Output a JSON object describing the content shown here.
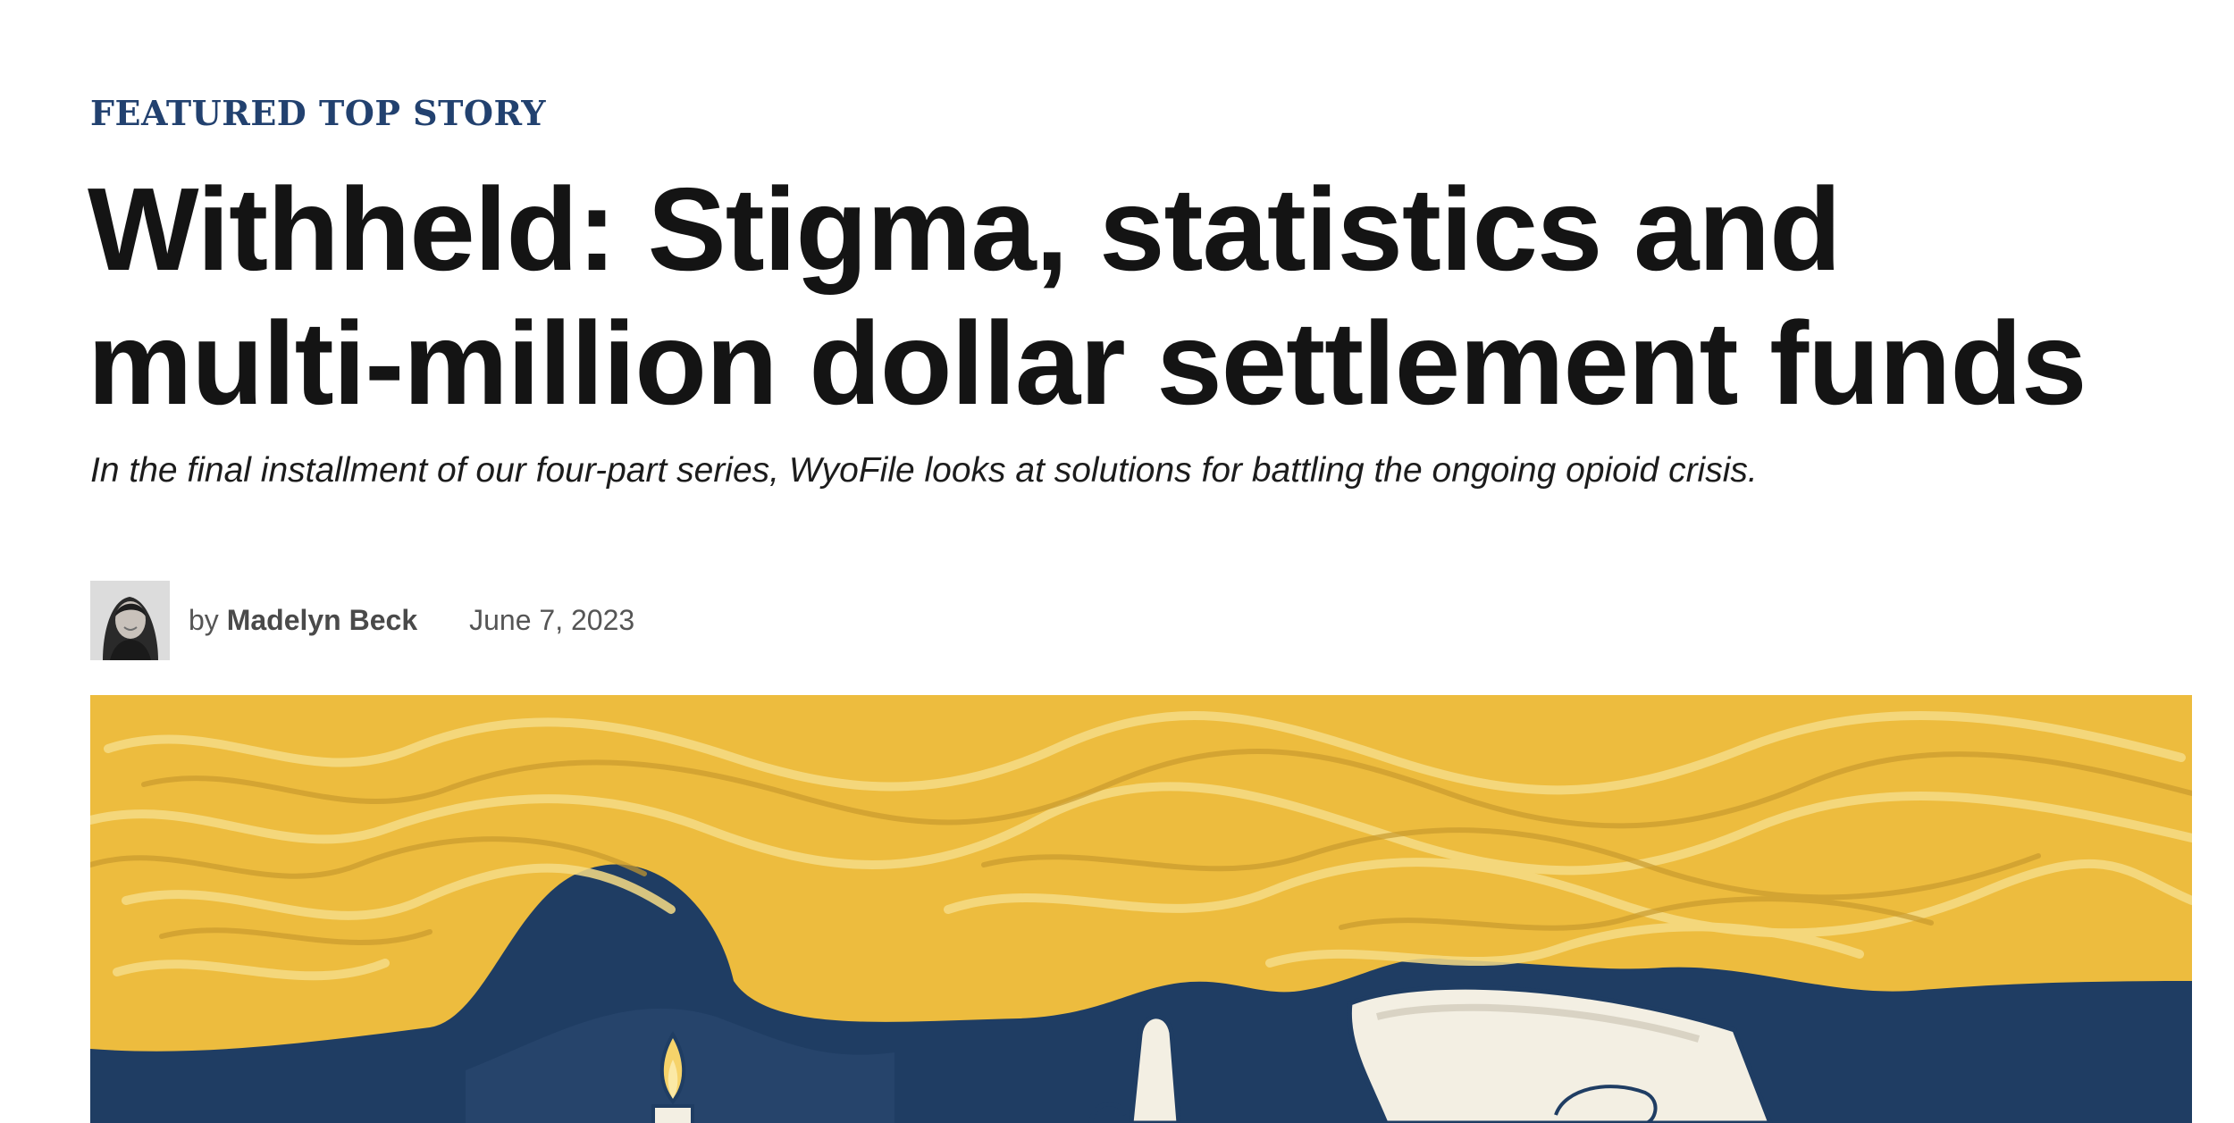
{
  "article": {
    "kicker": "FEATURED TOP STORY",
    "headline": "Withheld: Stigma, statistics and multi-million dollar settlement funds",
    "dek": "In the final installment of our four-part series, WyoFile looks at solutions for battling the ongoing opioid crisis.",
    "byline": {
      "by_prefix": "by",
      "author": "Madelyn Beck",
      "date": "June 7, 2023"
    }
  },
  "colors": {
    "kicker": "#22416f",
    "headline": "#141414",
    "hero_yellow": "#edbc3e",
    "hero_navy": "#1f3d63"
  },
  "hero_image": {
    "icon": "illustration-smoke-candle-hand"
  }
}
